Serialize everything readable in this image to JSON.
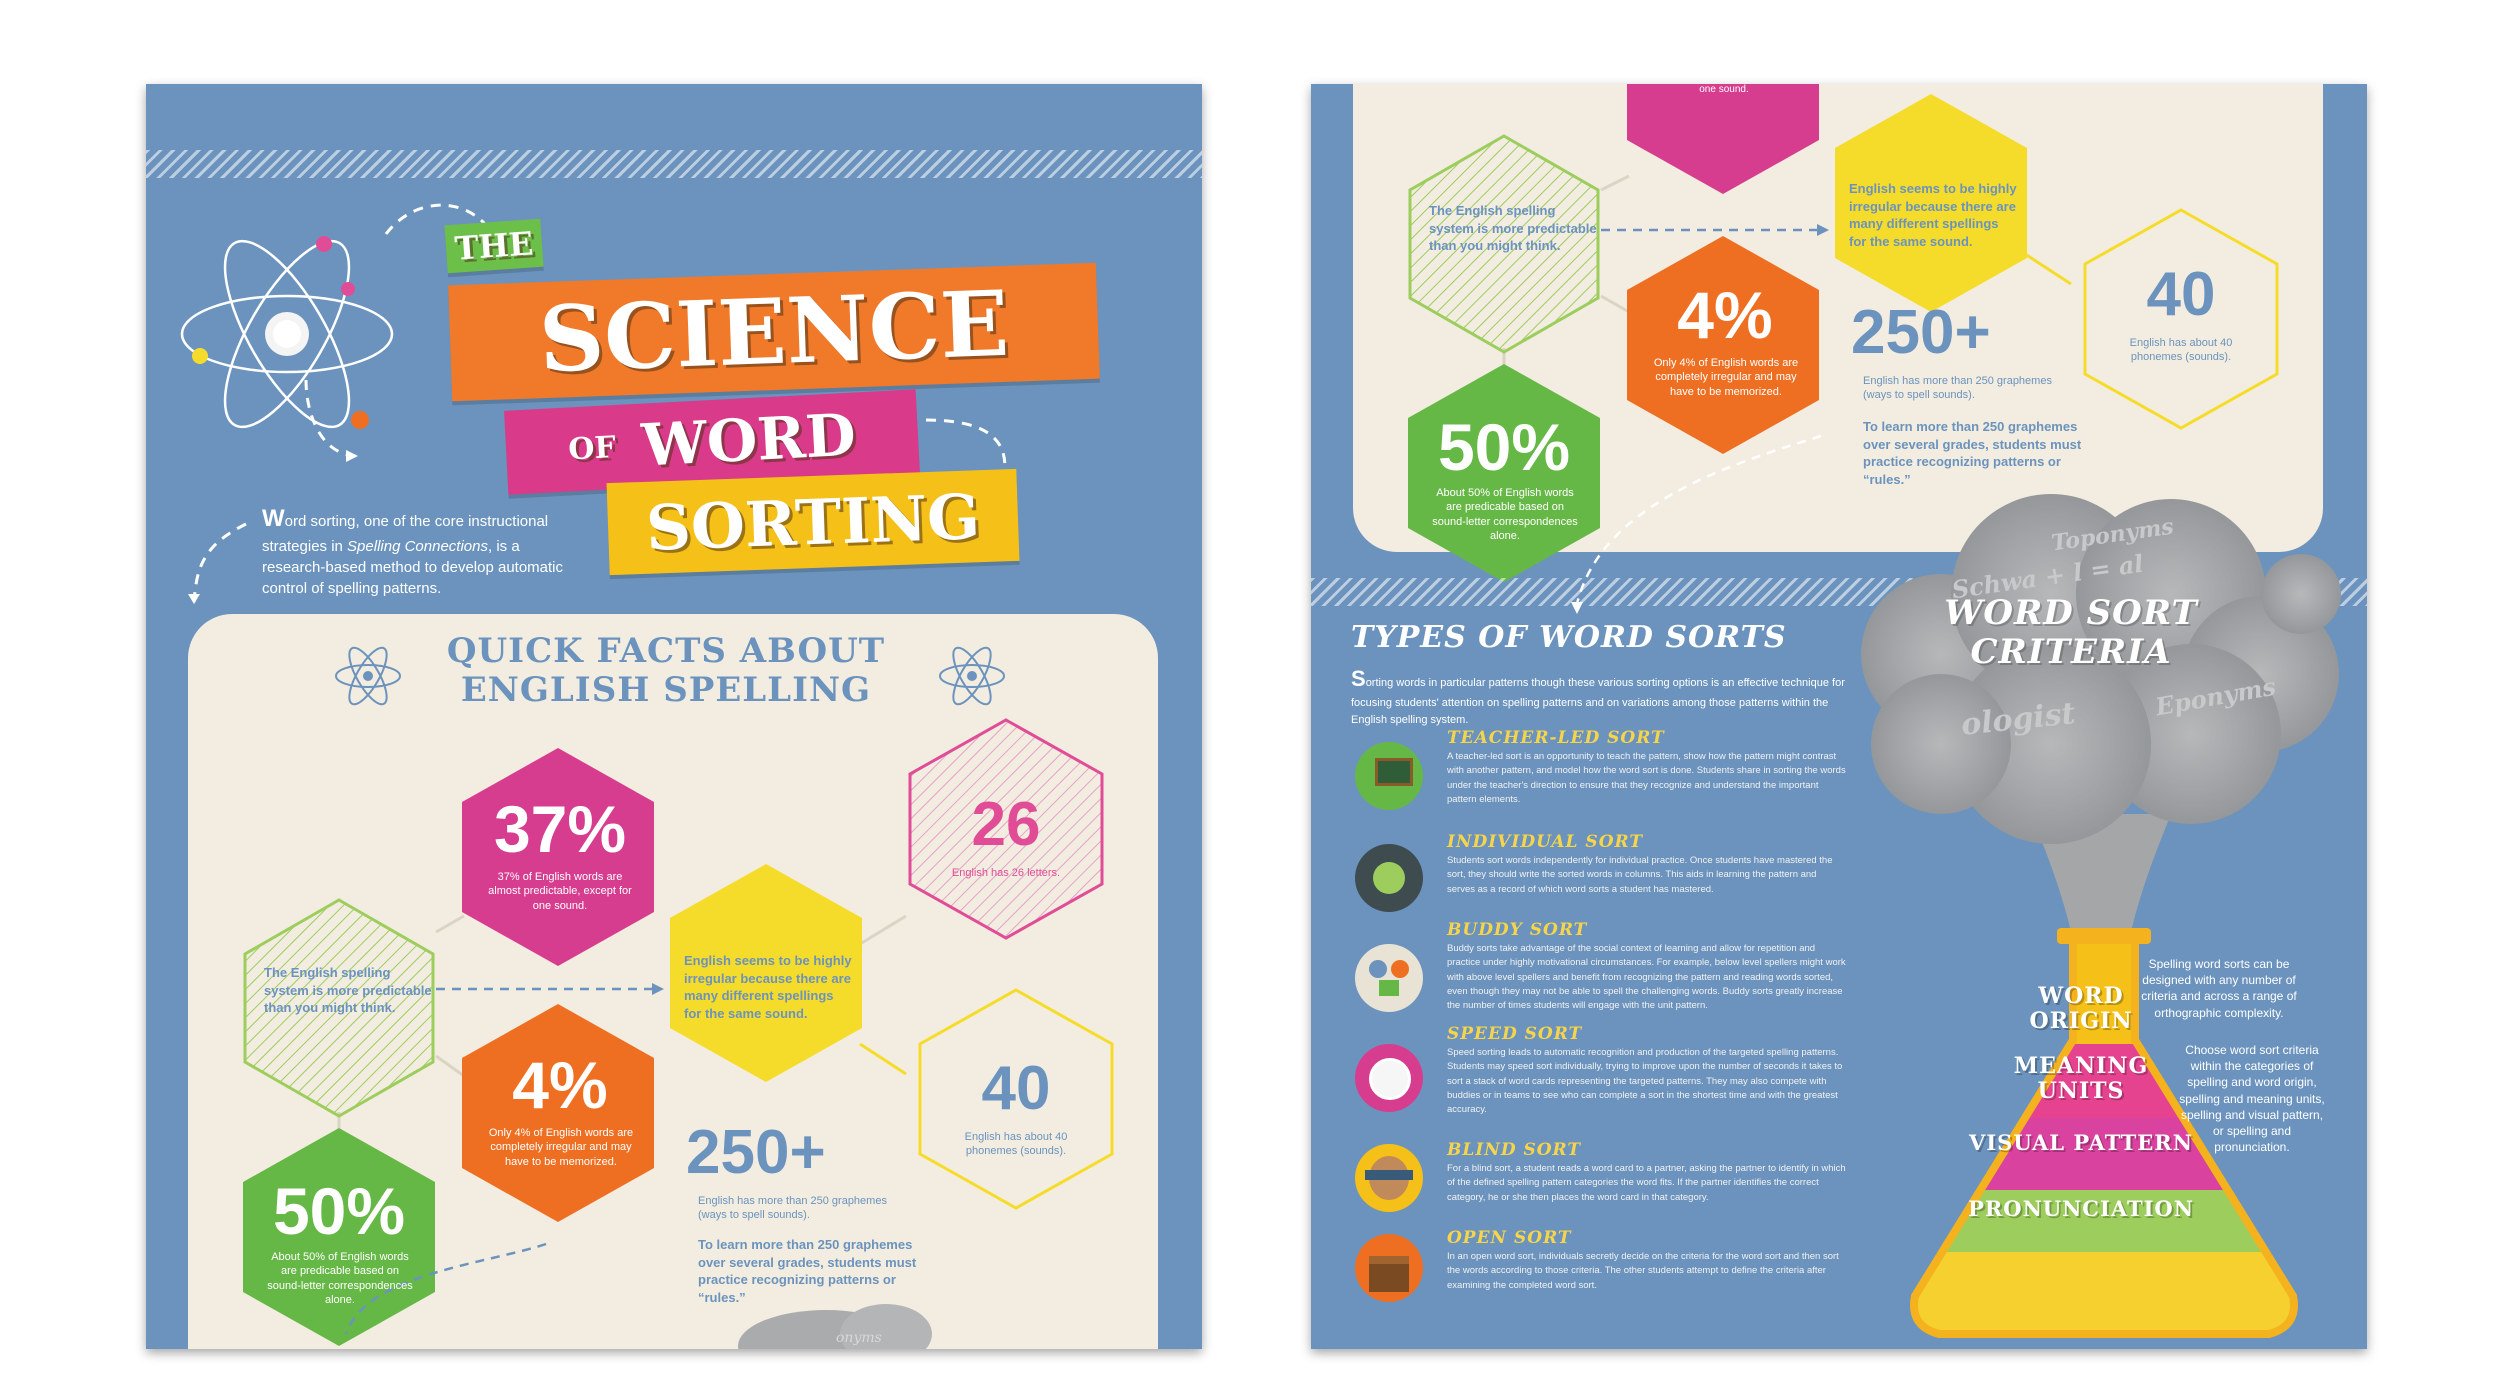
{
  "page1": {
    "title": {
      "the": "THE",
      "science": "SCIENCE",
      "of": "OF",
      "word": "WORD",
      "sorting": "SORTING"
    },
    "intro": {
      "drop_cap": "W",
      "text_a": "ord sorting, one of the core instructional strategies in ",
      "italic": "Spelling Connections",
      "text_b": ", is a research-based method to develop automatic control of spelling patterns."
    },
    "quick_facts": {
      "line1": "QUICK FACTS ABOUT",
      "line2": "ENGLISH SPELLING"
    },
    "facts": {
      "pct37": {
        "value": "37%",
        "text": "37% of English words are almost predictable, except for one sound."
      },
      "n26": {
        "value": "26",
        "text": "English has 26 letters."
      },
      "predictable": "The English spelling system is more predictable than you might think.",
      "irregular": "English seems to be highly irregular because there are many different spellings for the same sound.",
      "pct4": {
        "value": "4%",
        "text": "Only 4% of English words are completely irregular and may have to be memorized."
      },
      "n40": {
        "value": "40",
        "text": "English has about 40 phonemes (sounds)."
      },
      "n250": {
        "value": "250+",
        "text": "English has more than 250 graphemes (ways to spell sounds)."
      },
      "learn250": "To learn more than 250 graphemes over several grades, students must practice recognizing patterns or “rules.”",
      "pct50": {
        "value": "50%",
        "text": "About 50% of English words are predicable based on sound-letter correspondences alone."
      }
    },
    "cloud_partial_text": "onyms"
  },
  "page2": {
    "top_partial_text": "one sound.",
    "types": {
      "title": "TYPES OF WORD SORTS",
      "drop_cap": "S",
      "intro": "orting words in particular patterns though these various sorting options is an effective technique for focusing students' attention on spelling patterns and on variations among those patterns within the English spelling system.",
      "items": [
        {
          "icon": "teacher-icon",
          "title": "TEACHER-LED SORT",
          "text": "A teacher-led sort is an opportunity to teach the pattern, show how the pattern might contrast with another pattern, and model how the word sort is done. Students share in sorting the words under the teacher's direction to ensure that they recognize and understand the important pattern elements."
        },
        {
          "icon": "individual-icon",
          "title": "INDIVIDUAL SORT",
          "text": "Students sort words independently for individual practice. Once students have mastered the sort, they should write the sorted words in columns. This aids in learning the pattern and serves as a record of which word sorts a student has mastered."
        },
        {
          "icon": "buddy-icon",
          "title": "BUDDY SORT",
          "text": "Buddy sorts take advantage of the social context of learning and allow for repetition and practice under highly motivational circumstances. For example, below level spellers might work with above level spellers and benefit from recognizing the pattern and reading words sorted, even though they may not be able to spell the challenging words. Buddy sorts greatly increase the number of times students will engage with the unit pattern."
        },
        {
          "icon": "stopwatch-icon",
          "title": "SPEED SORT",
          "text": "Speed sorting leads to automatic recognition and production of the targeted spelling patterns. Students may speed sort individually, trying to improve upon the number of seconds it takes to sort a stack of word cards representing the targeted patterns. They may also compete with buddies or in teams to see who can complete a sort in the shortest time and with the greatest accuracy."
        },
        {
          "icon": "blindfold-icon",
          "title": "BLIND SORT",
          "text": "For a blind sort, a student reads a word card to a partner, asking the partner to identify in which of the defined spelling pattern categories the word fits. If the partner identifies the correct category, he or she then places the word card in that category."
        },
        {
          "icon": "chest-icon",
          "title": "OPEN SORT",
          "text": "In an open word sort, individuals secretly decide on the criteria for the word sort and then sort the words according to those criteria. The other students attempt to define the criteria after examining the completed word sort."
        }
      ]
    },
    "criteria": {
      "title_line1": "WORD SORT",
      "title_line2": "CRITERIA",
      "cloud_words": [
        "Toponyms",
        "Schwa + l = al",
        "ologist",
        "Eponyms"
      ],
      "layers": [
        {
          "label": "WORD\nORIGIN",
          "color": "#e5438f"
        },
        {
          "label": "MEANING\nUNITS",
          "color": "#d9439f"
        },
        {
          "label": "VISUAL PATTERN",
          "color": "#9ccd5d"
        },
        {
          "label": "PRONUNCIATION",
          "color": "#f5d02f"
        }
      ],
      "side1": "Spelling word sorts can be designed with any number of criteria and across a range of orthographic complexity.",
      "side2": "Choose word sort criteria within the categories of spelling and word origin, spelling and meaning units, spelling and visual pattern, or spelling and pronunciation."
    }
  },
  "colors": {
    "page_blue": "#6b93bd",
    "cream": "#f2ede0",
    "magenta": "#d63d8f",
    "orange": "#ee6f22",
    "green": "#66b846",
    "yellow": "#f6dc2a",
    "title_orange": "#f07a2a",
    "title_green": "#6cc04a",
    "title_magenta": "#d93b8a",
    "title_yellow": "#f5c118"
  }
}
